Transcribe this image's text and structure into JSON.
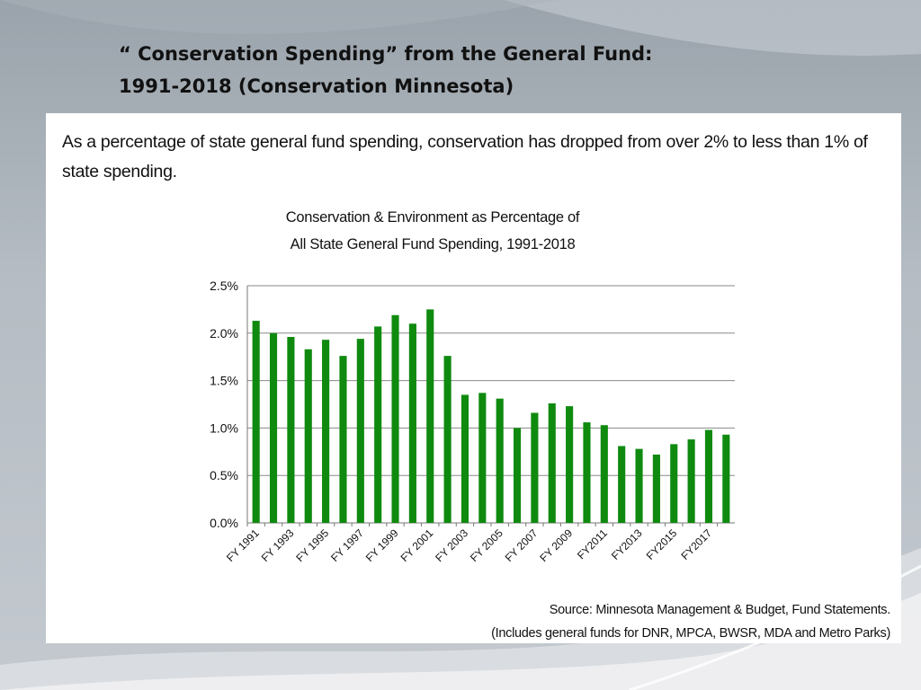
{
  "slide": {
    "title_line1": "“ Conservation Spending” from the General Fund:",
    "title_line2": "1991-2018 (Conservation Minnesota)"
  },
  "panel": {
    "intro": "As a percentage of state general fund spending, conservation has dropped from over 2% to less than 1% of state spending.",
    "source_line1": "Source: Minnesota Management & Budget, Fund Statements.",
    "source_line2": "(Includes general funds for DNR, MPCA, BWSR, MDA and Metro Parks)"
  },
  "colors": {
    "bar": "#0f8a0f",
    "grid": "#8a8a8a",
    "axis": "#777777"
  },
  "chart_data": {
    "type": "bar",
    "title_line1": "Conservation & Environment as Percentage of",
    "title_line2": "All State General Fund Spending, 1991-2018",
    "categories": [
      "FY 1991",
      "FY 1992",
      "FY 1993",
      "FY 1994",
      "FY 1995",
      "FY 1996",
      "FY 1997",
      "FY 1998",
      "FY 1999",
      "FY 2000",
      "FY 2001",
      "FY 2002",
      "FY 2003",
      "FY 2004",
      "FY 2005",
      "FY 2006",
      "FY 2007",
      "FY 2008",
      "FY 2009",
      "FY 2010",
      "FY2011",
      "FY2012",
      "FY2013",
      "FY2014",
      "FY2015",
      "FY2016",
      "FY2017",
      "FY2018"
    ],
    "tick_labels": [
      "FY 1991",
      "FY 1993",
      "FY 1995",
      "FY 1997",
      "FY 1999",
      "FY 2001",
      "FY 2003",
      "FY 2005",
      "FY 2007",
      "FY 2009",
      "FY2011",
      "FY2013",
      "FY2015",
      "FY2017"
    ],
    "values": [
      2.13,
      2.0,
      1.96,
      1.83,
      1.93,
      1.76,
      1.94,
      2.07,
      2.19,
      2.1,
      2.25,
      1.76,
      1.35,
      1.37,
      1.31,
      1.0,
      1.16,
      1.26,
      1.23,
      1.06,
      1.03,
      0.81,
      0.78,
      0.72,
      0.83,
      0.88,
      0.98,
      0.93
    ],
    "y_ticks": [
      "0.0%",
      "0.5%",
      "1.0%",
      "1.5%",
      "2.0%",
      "2.5%"
    ],
    "ylim": [
      0,
      2.5
    ],
    "xlabel": "",
    "ylabel": "",
    "grid": true
  }
}
